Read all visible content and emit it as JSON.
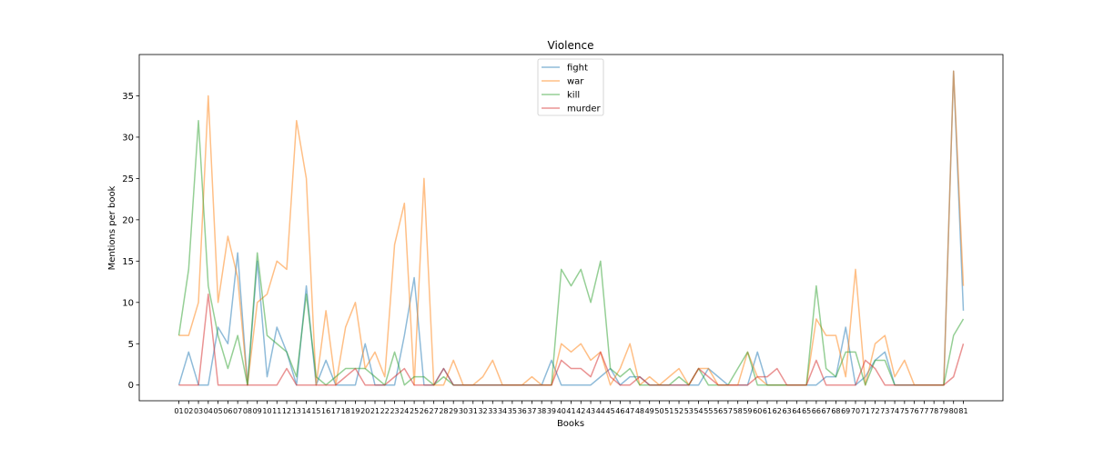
{
  "chart_data": {
    "type": "line",
    "title": "Violence",
    "xlabel": "Books",
    "ylabel": "Mentions per book",
    "ylim": [
      -1.9,
      40.0
    ],
    "yticks": [
      0,
      5,
      10,
      15,
      20,
      25,
      30,
      35
    ],
    "grid": false,
    "legend_position": "top-center",
    "categories": [
      "01",
      "02",
      "03",
      "04",
      "05",
      "06",
      "07",
      "08",
      "09",
      "10",
      "11",
      "12",
      "13",
      "14",
      "15",
      "16",
      "17",
      "18",
      "19",
      "20",
      "21",
      "22",
      "23",
      "24",
      "25",
      "26",
      "27",
      "28",
      "29",
      "30",
      "31",
      "32",
      "33",
      "34",
      "35",
      "36",
      "37",
      "38",
      "39",
      "40",
      "41",
      "42",
      "43",
      "44",
      "45",
      "46",
      "47",
      "48",
      "49",
      "50",
      "51",
      "52",
      "53",
      "54",
      "55",
      "56",
      "57",
      "58",
      "59",
      "60",
      "61",
      "62",
      "63",
      "64",
      "65",
      "66",
      "67",
      "68",
      "69",
      "70",
      "71",
      "72",
      "73",
      "74",
      "75",
      "76",
      "77",
      "78",
      "79",
      "80",
      "81"
    ],
    "series": [
      {
        "name": "fight",
        "color": "#1f77b4",
        "values": [
          0,
          4,
          0,
          0,
          7,
          5,
          16,
          0,
          15,
          1,
          7,
          4,
          0,
          12,
          0,
          3,
          0,
          0,
          0,
          5,
          0,
          0,
          0,
          6,
          13,
          0,
          0,
          2,
          0,
          0,
          0,
          0,
          0,
          0,
          0,
          0,
          0,
          0,
          3,
          0,
          0,
          0,
          0,
          1,
          2,
          0,
          1,
          1,
          0,
          0,
          0,
          0,
          0,
          0,
          2,
          1,
          0,
          0,
          0,
          4,
          0,
          0,
          0,
          0,
          0,
          0,
          1,
          1,
          7,
          0,
          1,
          3,
          4,
          0,
          0,
          0,
          0,
          0,
          0,
          38,
          9
        ]
      },
      {
        "name": "war",
        "color": "#ff7f0e",
        "values": [
          6,
          6,
          10,
          35,
          10,
          18,
          13,
          0,
          10,
          11,
          15,
          14,
          32,
          25,
          0,
          9,
          0,
          7,
          10,
          2,
          4,
          1,
          17,
          22,
          0,
          25,
          0,
          0,
          3,
          0,
          0,
          1,
          3,
          0,
          0,
          0,
          1,
          0,
          0,
          5,
          4,
          5,
          3,
          4,
          0,
          2,
          5,
          0,
          1,
          0,
          1,
          2,
          0,
          2,
          2,
          0,
          0,
          0,
          4,
          1,
          0,
          0,
          0,
          0,
          0,
          8,
          6,
          6,
          1,
          14,
          0,
          5,
          6,
          1,
          3,
          0,
          0,
          0,
          0,
          38,
          12
        ]
      },
      {
        "name": "kill",
        "color": "#2ca02c",
        "values": [
          6,
          14,
          32,
          12,
          6,
          2,
          6,
          0,
          16,
          6,
          5,
          4,
          1,
          11,
          1,
          0,
          1,
          2,
          2,
          2,
          1,
          0,
          4,
          0,
          1,
          1,
          0,
          1,
          0,
          0,
          0,
          0,
          0,
          0,
          0,
          0,
          0,
          0,
          0,
          14,
          12,
          14,
          10,
          15,
          2,
          1,
          2,
          0,
          0,
          0,
          0,
          1,
          0,
          2,
          0,
          0,
          0,
          2,
          4,
          0,
          0,
          0,
          0,
          0,
          0,
          12,
          2,
          1,
          4,
          4,
          0,
          3,
          3,
          0,
          0,
          0,
          0,
          0,
          0,
          6,
          8
        ]
      },
      {
        "name": "murder",
        "color": "#d62728",
        "values": [
          0,
          0,
          0,
          11,
          0,
          0,
          0,
          0,
          0,
          0,
          0,
          2,
          0,
          0,
          0,
          0,
          0,
          1,
          2,
          0,
          0,
          0,
          1,
          2,
          0,
          0,
          0,
          2,
          0,
          0,
          0,
          0,
          0,
          0,
          0,
          0,
          0,
          0,
          0,
          3,
          2,
          2,
          1,
          4,
          1,
          0,
          0,
          1,
          0,
          0,
          0,
          0,
          0,
          2,
          1,
          0,
          0,
          0,
          0,
          1,
          1,
          2,
          0,
          0,
          0,
          3,
          0,
          0,
          0,
          0,
          3,
          2,
          0,
          0,
          0,
          0,
          0,
          0,
          0,
          1,
          5
        ]
      }
    ]
  }
}
